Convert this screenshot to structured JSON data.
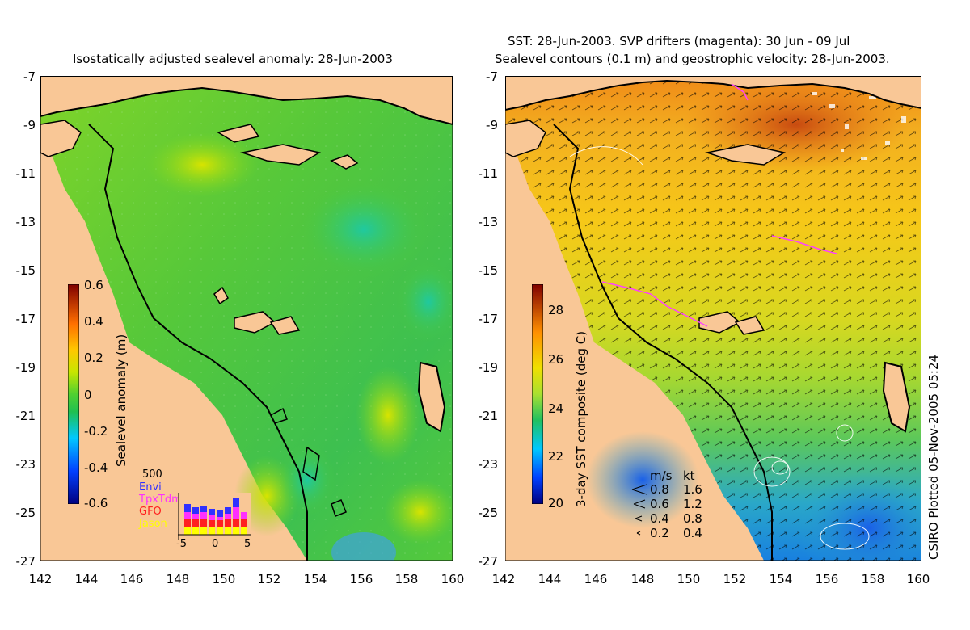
{
  "left_panel": {
    "title": "Isostatically adjusted sealevel anomaly: 28-Jun-2003",
    "colorbar": {
      "label": "Sealevel anomaly (m)",
      "ticks": [
        "0.6",
        "0.4",
        "0.2",
        "0",
        "-0.2",
        "-0.4",
        "-0.6"
      ],
      "range": [
        -0.6,
        0.6
      ]
    },
    "inset": {
      "count_label": "500",
      "missions": [
        {
          "name": "Envi",
          "color": "#3030ff"
        },
        {
          "name": "TpxTdm",
          "color": "#ff30ff"
        },
        {
          "name": "GFO",
          "color": "#ff2020"
        },
        {
          "name": "Jason",
          "color": "#ffff00"
        }
      ],
      "x_ticks": [
        "-5",
        "0",
        "5"
      ]
    }
  },
  "right_panel": {
    "title_line1": "SST: 28-Jun-2003. SVP drifters (magenta): 30 Jun - 09 Jul",
    "title_line2": "Sealevel contours (0.1 m) and geostrophic velocity: 28-Jun-2003.",
    "colorbar": {
      "label": "3-day SST composite (deg C)",
      "ticks": [
        "28",
        "26",
        "24",
        "22",
        "20"
      ],
      "range": [
        20,
        29
      ]
    },
    "velocity_key": {
      "header_ms": "m/s",
      "header_kt": "kt",
      "rows": [
        {
          "ms": "0.8",
          "kt": "1.6"
        },
        {
          "ms": "0.6",
          "kt": "1.2"
        },
        {
          "ms": "0.4",
          "kt": "0.8"
        },
        {
          "ms": "0.2",
          "kt": "0.4"
        }
      ]
    },
    "credit": "CSIRO Plotted 05-Nov-2005 05:24"
  },
  "axes": {
    "y_ticks": [
      "-7",
      "-9",
      "-11",
      "-13",
      "-15",
      "-17",
      "-19",
      "-21",
      "-23",
      "-25",
      "-27"
    ],
    "x_ticks": [
      "142",
      "144",
      "146",
      "148",
      "150",
      "152",
      "154",
      "156",
      "158",
      "160"
    ],
    "lat_range": [
      -27,
      -7
    ],
    "lon_range": [
      142,
      160
    ]
  },
  "colors": {
    "land": "#f9c796",
    "coast": "#000000"
  }
}
